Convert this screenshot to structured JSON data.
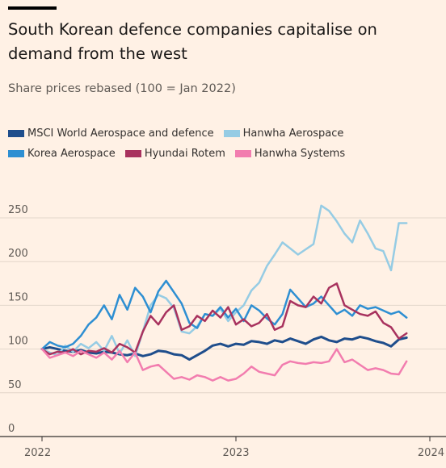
{
  "header": {
    "title": "South Korean defence companies capitalise on demand from the west",
    "subtitle": "Share prices rebased (100 = Jan 2022)"
  },
  "chart_data": {
    "type": "line",
    "title": "South Korean defence companies capitalise on demand from the west",
    "subtitle": "Share prices rebased (100 = Jan 2022)",
    "xlabel": "",
    "ylabel": "",
    "xlim": [
      2022.0,
      2024.0
    ],
    "ylim": [
      0,
      270
    ],
    "yticks": [
      0,
      50,
      100,
      150,
      200,
      250
    ],
    "xticks": [
      {
        "value": 2022,
        "label": "2022"
      },
      {
        "value": 2023,
        "label": "2023"
      },
      {
        "value": 2024,
        "label": "2024"
      }
    ],
    "grid": true,
    "legend_position": "top",
    "series": [
      {
        "name": "MSCI World Aerospace and defence",
        "color": "#1F4E8C",
        "width": 3,
        "x": [
          2022.0,
          2022.04,
          2022.08,
          2022.12,
          2022.16,
          2022.2,
          2022.24,
          2022.28,
          2022.32,
          2022.36,
          2022.4,
          2022.44,
          2022.48,
          2022.52,
          2022.56,
          2022.6,
          2022.64,
          2022.68,
          2022.72,
          2022.76,
          2022.8,
          2022.84,
          2022.88,
          2022.92,
          2022.96,
          2023.0,
          2023.04,
          2023.08,
          2023.12,
          2023.16,
          2023.2,
          2023.24,
          2023.28,
          2023.32,
          2023.36,
          2023.4,
          2023.44,
          2023.48,
          2023.52,
          2023.56,
          2023.6,
          2023.64,
          2023.68,
          2023.72,
          2023.76,
          2023.8,
          2023.84,
          2023.88
        ],
        "y": [
          100,
          102,
          100,
          98,
          97,
          99,
          96,
          95,
          97,
          96,
          94,
          93,
          95,
          92,
          94,
          98,
          97,
          94,
          93,
          88,
          93,
          98,
          104,
          106,
          103,
          106,
          105,
          109,
          108,
          106,
          110,
          108,
          112,
          109,
          106,
          111,
          114,
          110,
          108,
          112,
          111,
          114,
          112,
          109,
          107,
          103,
          111,
          113
        ]
      },
      {
        "name": "Hanwha Aerospace",
        "color": "#96CCE4",
        "width": 2.5,
        "x": [
          2022.0,
          2022.04,
          2022.08,
          2022.12,
          2022.16,
          2022.2,
          2022.24,
          2022.28,
          2022.32,
          2022.36,
          2022.4,
          2022.44,
          2022.48,
          2022.52,
          2022.56,
          2022.6,
          2022.64,
          2022.68,
          2022.72,
          2022.76,
          2022.8,
          2022.84,
          2022.88,
          2022.92,
          2022.96,
          2023.0,
          2023.04,
          2023.08,
          2023.12,
          2023.16,
          2023.2,
          2023.24,
          2023.28,
          2023.32,
          2023.36,
          2023.4,
          2023.44,
          2023.48,
          2023.52,
          2023.56,
          2023.6,
          2023.64,
          2023.68,
          2023.72,
          2023.76,
          2023.8,
          2023.84,
          2023.88
        ],
        "y": [
          100,
          96,
          93,
          104,
          97,
          106,
          101,
          108,
          98,
          115,
          95,
          110,
          92,
          120,
          150,
          162,
          158,
          147,
          120,
          118,
          126,
          140,
          138,
          146,
          132,
          142,
          150,
          167,
          176,
          195,
          208,
          222,
          215,
          208,
          214,
          220,
          264,
          258,
          246,
          232,
          222,
          247,
          232,
          215,
          212,
          190,
          244,
          244
        ]
      },
      {
        "name": "Korea Aerospace",
        "color": "#2E8FD2",
        "width": 2.5,
        "x": [
          2022.0,
          2022.04,
          2022.08,
          2022.12,
          2022.16,
          2022.2,
          2022.24,
          2022.28,
          2022.32,
          2022.36,
          2022.4,
          2022.44,
          2022.48,
          2022.52,
          2022.56,
          2022.6,
          2022.64,
          2022.68,
          2022.72,
          2022.76,
          2022.8,
          2022.84,
          2022.88,
          2022.92,
          2022.96,
          2023.0,
          2023.04,
          2023.08,
          2023.12,
          2023.16,
          2023.2,
          2023.24,
          2023.28,
          2023.32,
          2023.36,
          2023.4,
          2023.44,
          2023.48,
          2023.52,
          2023.56,
          2023.6,
          2023.64,
          2023.68,
          2023.72,
          2023.76,
          2023.8,
          2023.84,
          2023.88
        ],
        "y": [
          100,
          108,
          104,
          102,
          106,
          115,
          128,
          136,
          150,
          134,
          162,
          145,
          170,
          160,
          142,
          166,
          178,
          165,
          152,
          130,
          124,
          140,
          138,
          148,
          136,
          146,
          132,
          150,
          144,
          135,
          128,
          140,
          168,
          158,
          148,
          152,
          160,
          150,
          140,
          145,
          138,
          150,
          146,
          148,
          144,
          140,
          143,
          136
        ]
      },
      {
        "name": "Hyundai Rotem",
        "color": "#A8325E",
        "width": 2.5,
        "x": [
          2022.0,
          2022.04,
          2022.08,
          2022.12,
          2022.16,
          2022.2,
          2022.24,
          2022.28,
          2022.32,
          2022.36,
          2022.4,
          2022.44,
          2022.48,
          2022.52,
          2022.56,
          2022.6,
          2022.64,
          2022.68,
          2022.72,
          2022.76,
          2022.8,
          2022.84,
          2022.88,
          2022.92,
          2022.96,
          2023.0,
          2023.04,
          2023.08,
          2023.12,
          2023.16,
          2023.2,
          2023.24,
          2023.28,
          2023.32,
          2023.36,
          2023.4,
          2023.44,
          2023.48,
          2023.52,
          2023.56,
          2023.6,
          2023.64,
          2023.68,
          2023.72,
          2023.76,
          2023.8,
          2023.84,
          2023.88
        ],
        "y": [
          100,
          94,
          97,
          96,
          100,
          94,
          98,
          97,
          101,
          96,
          106,
          102,
          96,
          120,
          138,
          128,
          142,
          150,
          122,
          126,
          138,
          132,
          144,
          136,
          148,
          128,
          134,
          126,
          130,
          140,
          122,
          126,
          155,
          150,
          148,
          160,
          152,
          170,
          175,
          150,
          145,
          140,
          138,
          143,
          130,
          125,
          112,
          118
        ]
      },
      {
        "name": "Hanwha Systems",
        "color": "#F27DAF",
        "width": 2.5,
        "x": [
          2022.0,
          2022.04,
          2022.08,
          2022.12,
          2022.16,
          2022.2,
          2022.24,
          2022.28,
          2022.32,
          2022.36,
          2022.4,
          2022.44,
          2022.48,
          2022.52,
          2022.56,
          2022.6,
          2022.64,
          2022.68,
          2022.72,
          2022.76,
          2022.8,
          2022.84,
          2022.88,
          2022.92,
          2022.96,
          2023.0,
          2023.04,
          2023.08,
          2023.12,
          2023.16,
          2023.2,
          2023.24,
          2023.28,
          2023.32,
          2023.36,
          2023.4,
          2023.44,
          2023.48,
          2023.52,
          2023.56,
          2023.6,
          2023.64,
          2023.68,
          2023.72,
          2023.76,
          2023.8,
          2023.84,
          2023.88
        ],
        "y": [
          100,
          90,
          93,
          96,
          92,
          98,
          94,
          90,
          96,
          88,
          98,
          85,
          96,
          76,
          80,
          82,
          74,
          66,
          68,
          65,
          70,
          68,
          64,
          68,
          64,
          66,
          72,
          80,
          74,
          72,
          70,
          82,
          86,
          84,
          83,
          85,
          84,
          86,
          100,
          85,
          88,
          82,
          76,
          78,
          76,
          72,
          71,
          86
        ]
      }
    ]
  }
}
